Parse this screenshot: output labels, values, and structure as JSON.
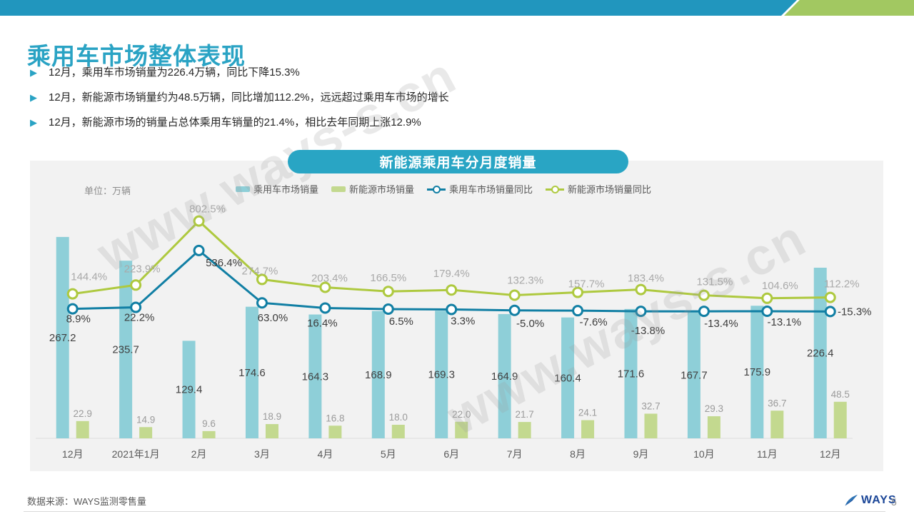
{
  "page": {
    "title": "乘用车市场整体表现",
    "bullets": [
      "12月，乘用车市场销量为226.4万辆，同比下降15.3%",
      "12月，新能源市场销量约为48.5万辆，同比增加112.2%，远远超过乘用车市场的增长",
      "12月，新能源市场的销量占总体乘用车销量的21.4%，相比去年同期上涨12.9%"
    ],
    "watermark_text": "www.ways-s.cn",
    "accent_teal": "#2aa3c4",
    "accent_green": "#a2c861"
  },
  "chart": {
    "badge_title": "新能源乘用车分月度销量",
    "unit_label": "单位：万辆"
  },
  "chart_data": {
    "type": "bar+line combo",
    "title": "新能源乘用车分月度销量",
    "unit": "万辆",
    "legend_position": "top",
    "y_axis": "hidden",
    "categories": [
      "12月",
      "2021年1月",
      "2月",
      "3月",
      "4月",
      "5月",
      "6月",
      "7月",
      "8月",
      "9月",
      "10月",
      "11月",
      "12月"
    ],
    "series": [
      {
        "name": "乘用车市场销量",
        "type": "bar",
        "color": "#8ecfd8",
        "label_color": "#404040",
        "values": [
          267.2,
          235.7,
          129.4,
          174.6,
          164.3,
          168.9,
          169.3,
          164.9,
          160.4,
          171.6,
          167.7,
          175.9,
          226.4
        ]
      },
      {
        "name": "新能源市场销量",
        "type": "bar",
        "color": "#c3d98f",
        "label_color": "#9b9b9b",
        "values": [
          22.9,
          14.9,
          9.6,
          18.9,
          16.8,
          18.0,
          22.0,
          21.7,
          24.1,
          32.7,
          29.3,
          36.7,
          48.5
        ]
      },
      {
        "name": "乘用车市场销量同比",
        "type": "line",
        "unit": "%",
        "color": "#117fa4",
        "label_color": "#3b3b3b",
        "values": [
          8.9,
          22.2,
          536.4,
          63.0,
          16.4,
          6.5,
          3.3,
          -5.0,
          -7.6,
          -13.8,
          -13.4,
          -13.1,
          -15.3
        ]
      },
      {
        "name": "新能源市场销量同比",
        "type": "line",
        "unit": "%",
        "color": "#aec93f",
        "label_color": "#a9a9a9",
        "values": [
          144.4,
          223.9,
          802.5,
          274.7,
          203.4,
          166.5,
          179.4,
          132.3,
          157.7,
          183.4,
          131.5,
          104.6,
          112.2
        ]
      }
    ]
  },
  "footer": {
    "source": "数据来源：WAYS监测零售量",
    "logo_text": "WAYS",
    "page_number": "5"
  }
}
